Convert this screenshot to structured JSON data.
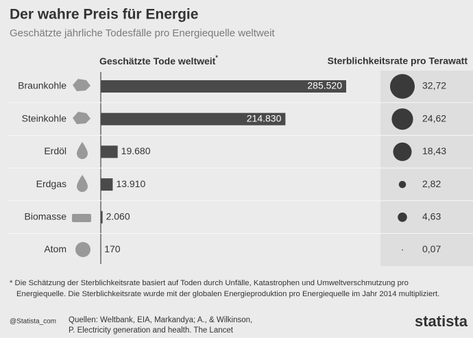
{
  "chart_data": {
    "type": "bar",
    "title": "Der wahre Preis für Energie",
    "subtitle": "Geschätzte jährliche Todesfälle pro Energiequelle weltweit",
    "categories": [
      "Braunkohle",
      "Steinkohle",
      "Erdöl",
      "Erdgas",
      "Biomasse",
      "Atom"
    ],
    "series": [
      {
        "name": "Geschätzte Tode weltweit",
        "color": "#4a4a4a",
        "values": [
          285520,
          214830,
          19680,
          13910,
          2060,
          170
        ],
        "value_labels": [
          "285.520",
          "214.830",
          "19.680",
          "13.910",
          "2.060",
          "170"
        ]
      },
      {
        "name": "Sterblichkeitsrate pro Terawatt",
        "color": "#3a3a3a",
        "values": [
          32.72,
          24.62,
          18.43,
          2.82,
          4.63,
          0.07
        ],
        "value_labels": [
          "32,72",
          "24,62",
          "18,43",
          "2,82",
          "4,63",
          "0,07"
        ]
      }
    ],
    "footnote_marker": "*",
    "footnote": [
      "* Die Schätzung der Sterblichkeitsrate basiert auf Toden durch Unfälle, Katastrophen und Umweltverschmutzung pro",
      "Energiequelle. Die Sterblichkeitsrate wurde mit der globalen Energieproduktion pro Energiequelle im Jahr 2014 multipliziert."
    ],
    "source": [
      "Quellen: Weltbank, EIA, Markandya; A., & Wilkinson,",
      "P. Electricity generation and health. The Lancet"
    ],
    "handle": "@Statista_com",
    "brand": "statista"
  }
}
